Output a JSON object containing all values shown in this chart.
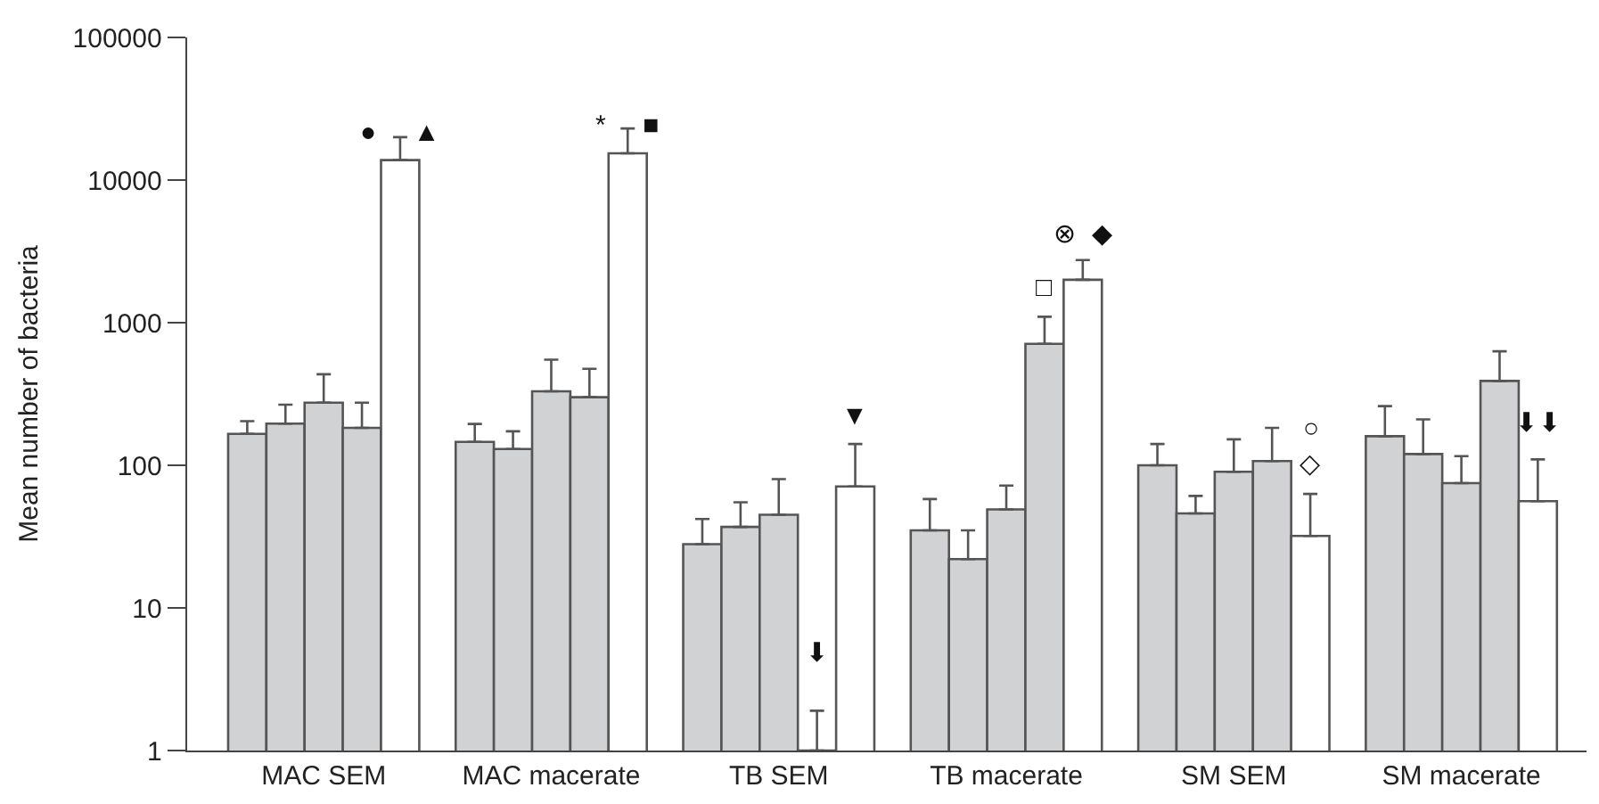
{
  "chart_data": {
    "type": "bar",
    "ylabel": "Mean number of bacteria",
    "categories": [
      "MAC SEM",
      "MAC macerate",
      "TB SEM",
      "TB macerate",
      "SM SEM",
      "SM macerate"
    ],
    "log": true,
    "ylim": [
      1,
      100000
    ],
    "yticks": [
      1,
      10,
      100,
      1000,
      10000,
      100000
    ],
    "series": [
      {
        "color": "#d1d2d4",
        "values": [
          166,
          146,
          28,
          35,
          100,
          160
        ],
        "errors": [
          [
            166,
            204
          ],
          [
            146,
            195
          ],
          [
            28,
            42
          ],
          [
            35,
            58
          ],
          [
            100,
            141
          ],
          [
            160,
            260
          ]
        ]
      },
      {
        "color": "#d1d2d4",
        "values": [
          196,
          130,
          37,
          22,
          46,
          120
        ],
        "errors": [
          [
            196,
            266
          ],
          [
            130,
            173
          ],
          [
            37,
            55
          ],
          [
            22,
            35
          ],
          [
            46,
            61
          ],
          [
            120,
            210
          ]
        ]
      },
      {
        "color": "#d1d2d4",
        "values": [
          275,
          330,
          45,
          49,
          90,
          75
        ],
        "errors": [
          [
            275,
            435
          ],
          [
            330,
            550
          ],
          [
            45,
            80
          ],
          [
            49,
            72
          ],
          [
            90,
            152
          ],
          [
            75,
            116
          ]
        ]
      },
      {
        "color": "#d1d2d4",
        "values": [
          183,
          300,
          1,
          710,
          107,
          390
        ],
        "errors": [
          [
            183,
            275
          ],
          [
            300,
            475
          ],
          [
            1,
            1.9
          ],
          [
            710,
            1100
          ],
          [
            107,
            183
          ],
          [
            390,
            630
          ]
        ]
      },
      {
        "color": "#ffffff",
        "values": [
          13800,
          15400,
          71,
          2000,
          32,
          56
        ],
        "errors": [
          [
            13800,
            20000
          ],
          [
            15400,
            23000
          ],
          [
            71,
            141
          ],
          [
            2000,
            2750
          ],
          [
            32,
            63
          ],
          [
            56,
            110
          ]
        ]
      }
    ],
    "annotations": [
      "●     ▲",
      "*     ■",
      "⬇",
      "▼",
      "□",
      "⊗  ◆",
      "○",
      "◇",
      "⬇⬇"
    ]
  }
}
